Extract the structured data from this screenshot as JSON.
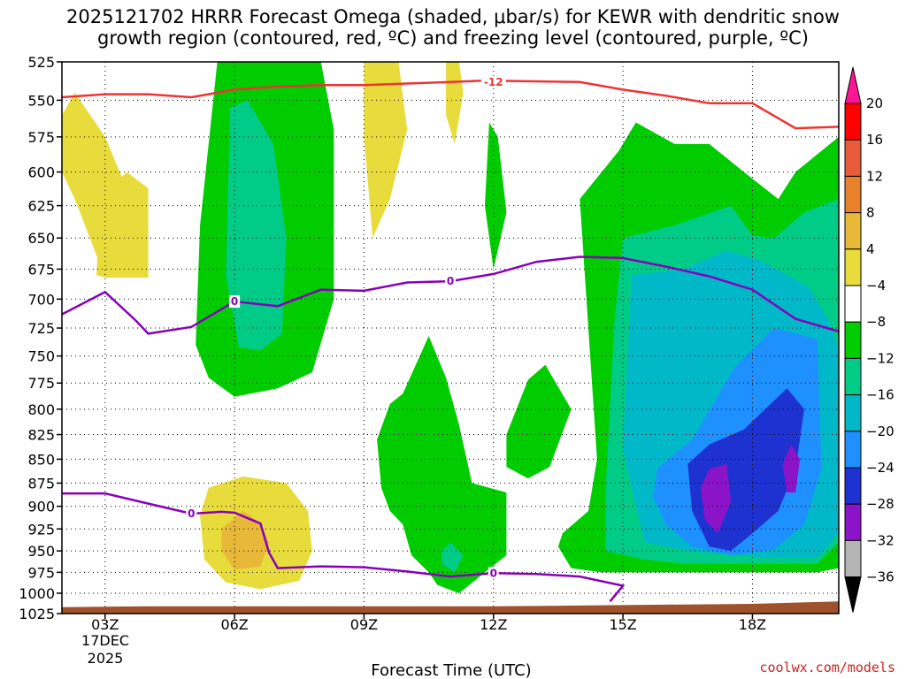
{
  "title_line1": "2025121702 HRRR Forecast Omega (shaded, μbar/s) for KEWR with dendritic snow",
  "title_line2": "growth region (contoured, red, ºC) and freezing level (contoured, purple, ºC)",
  "credit": "coolwx.com/models",
  "colors": {
    "ground": "#a0522d",
    "dgz_contour": "#ee3333",
    "freezing_contour": "#8800bb"
  },
  "chart_data": {
    "type": "heatmap",
    "title": "2025121702 HRRR Forecast Omega (shaded, μbar/s) for KEWR with dendritic snow growth region (contoured, red, ºC) and freezing level (contoured, purple, ºC)",
    "xlabel": "Forecast Time (UTC)",
    "ylabel": "",
    "x_ticks": [
      "03Z",
      "06Z",
      "09Z",
      "12Z",
      "15Z",
      "18Z"
    ],
    "x_tick_hours": [
      3,
      6,
      9,
      12,
      15,
      18
    ],
    "x_date_line1": "17DEC",
    "x_date_line2": "2025",
    "xlim": [
      2,
      20
    ],
    "y_ticks": [
      525,
      550,
      575,
      600,
      625,
      650,
      675,
      700,
      725,
      750,
      775,
      800,
      825,
      850,
      875,
      900,
      925,
      950,
      975,
      1000,
      1025
    ],
    "ylim": [
      525,
      1025
    ],
    "y_scale": "log-pressure",
    "grid": true,
    "colorbar": {
      "levels": [
        "20",
        "16",
        "12",
        "8",
        "4",
        "−4",
        "−8",
        "−12",
        "−16",
        "−20",
        "−24",
        "−28",
        "−32",
        "−36"
      ],
      "colors": [
        "#ff0000",
        "#e85c3c",
        "#e8802c",
        "#e8b838",
        "#e8dc3c",
        "#ffffff",
        "#00cc00",
        "#00cc88",
        "#00b8c8",
        "#1e90ff",
        "#1e32d2",
        "#8c14c8",
        "#b4b4b4"
      ],
      "top_color": "#ff1493",
      "bottom_color": "#000000"
    },
    "series": [
      {
        "name": "-12",
        "kind": "dgz_contour",
        "x": [
          2.0,
          3.0,
          4.0,
          5.0,
          6.0,
          7.0,
          8.0,
          9.0,
          10.0,
          11.0,
          11.8,
          14.0,
          15.0,
          16.0,
          17.0,
          18.0,
          19.0,
          20.0
        ],
        "y": [
          548,
          546,
          546,
          548,
          543,
          541,
          540,
          540,
          539,
          538,
          537,
          538,
          543,
          547,
          552,
          552,
          569,
          568
        ]
      },
      {
        "name": "0",
        "kind": "freezing_contour",
        "x": [
          2.0,
          3.0,
          3.7,
          4.0,
          5.0,
          6.0,
          7.0,
          8.0,
          9.0,
          10.0,
          11.0,
          12.0,
          13.0,
          14.0,
          15.0,
          16.0,
          17.0,
          18.0,
          19.0,
          20.0
        ],
        "y": [
          713,
          694,
          718,
          730,
          724,
          702,
          706,
          692,
          693,
          686,
          685,
          679,
          669,
          665,
          666,
          673,
          681,
          692,
          717,
          728
        ]
      },
      {
        "name": "0",
        "kind": "freezing_contour",
        "x": [
          2.0,
          3.0,
          4.0,
          5.0,
          5.7,
          6.0,
          6.6,
          6.8,
          7.0,
          8.0,
          9.0,
          10.0,
          11.0,
          12.0,
          13.0,
          14.0,
          15.0,
          14.7
        ],
        "y": [
          886,
          886,
          897,
          908,
          906,
          907,
          919,
          952,
          970,
          968,
          969,
          974,
          980,
          976,
          977,
          980,
          991,
          1010
        ]
      }
    ],
    "regions": [
      {
        "label": "4",
        "color": "#e8dc3c",
        "x": [
          2.0,
          2.3,
          3.0,
          3.5,
          3.5,
          3.0,
          2.3,
          2.0
        ],
        "y": [
          560,
          545,
          575,
          612,
          682,
          682,
          620,
          600
        ]
      },
      {
        "label": "4",
        "color": "#e8dc3c",
        "x": [
          2.8,
          2.9,
          3.5,
          4.0,
          4.0,
          3.0
        ],
        "y": [
          680,
          620,
          600,
          612,
          682,
          682
        ]
      },
      {
        "label": "4",
        "color": "#e8dc3c",
        "x": [
          5.4,
          6.2,
          7.2,
          7.7,
          7.8,
          7.5,
          6.6,
          5.8,
          5.3,
          5.2
        ],
        "y": [
          880,
          868,
          875,
          905,
          950,
          985,
          995,
          987,
          960,
          910
        ]
      },
      {
        "label": "8",
        "color": "#e8b838",
        "x": [
          5.7,
          6.2,
          6.6,
          6.8,
          6.6,
          6.0,
          5.7
        ],
        "y": [
          925,
          905,
          918,
          940,
          968,
          972,
          950
        ]
      },
      {
        "label": "4",
        "color": "#e8dc3c",
        "x": [
          9.0,
          9.4,
          9.8,
          10.0,
          9.6,
          9.2,
          9.0
        ],
        "y": [
          525,
          525,
          525,
          570,
          620,
          650,
          575
        ]
      },
      {
        "label": "4",
        "color": "#e8dc3c",
        "x": [
          10.9,
          11.2,
          11.3,
          11.1,
          10.9
        ],
        "y": [
          525,
          525,
          545,
          580,
          560
        ]
      },
      {
        "label": "-4",
        "color": "#00cc00",
        "x": [
          5.6,
          6.9,
          8.0,
          8.3,
          8.3,
          7.8,
          7.0,
          6.0,
          5.4,
          5.1,
          5.2
        ],
        "y": [
          525,
          525,
          525,
          570,
          700,
          765,
          780,
          788,
          770,
          740,
          640
        ]
      },
      {
        "label": "-8",
        "color": "#00cc88",
        "x": [
          5.9,
          6.3,
          6.9,
          7.2,
          7.1,
          6.6,
          6.1,
          5.8
        ],
        "y": [
          555,
          550,
          580,
          650,
          730,
          745,
          742,
          680
        ]
      },
      {
        "label": "-4",
        "color": "#00cc00",
        "x": [
          11.9,
          12.1,
          12.3,
          12.0,
          11.8
        ],
        "y": [
          565,
          575,
          630,
          675,
          625
        ]
      },
      {
        "label": "-4",
        "color": "#00cc00",
        "x": [
          9.6,
          9.9,
          10.5,
          10.9,
          11.2,
          11.5,
          12.3,
          12.3,
          11.8,
          11.2,
          10.7,
          10.5,
          10.1,
          9.9,
          9.6,
          9.4,
          9.3
        ],
        "y": [
          795,
          785,
          732,
          770,
          815,
          875,
          885,
          955,
          975,
          1000,
          990,
          975,
          955,
          920,
          905,
          880,
          830
        ]
      },
      {
        "label": "-8",
        "color": "#00cc88",
        "x": [
          10.8,
          11.0,
          11.3,
          11.1,
          10.8
        ],
        "y": [
          950,
          940,
          955,
          975,
          965
        ]
      },
      {
        "label": "-4",
        "color": "#00cc00",
        "x": [
          12.3,
          12.8,
          13.2,
          13.8,
          13.3,
          12.8,
          12.3
        ],
        "y": [
          825,
          772,
          758,
          800,
          858,
          870,
          858
        ]
      },
      {
        "label": "-4",
        "color": "#00cc00",
        "x": [
          14.9,
          15.3,
          16.2,
          17.0,
          17.8,
          18.6,
          19.0,
          20.0,
          20.0,
          19.5,
          18.5,
          17.5,
          16.5,
          15.5,
          14.5,
          13.8,
          13.5,
          13.6,
          14.2,
          14.4,
          14.0
        ],
        "y": [
          585,
          565,
          580,
          580,
          600,
          620,
          600,
          575,
          970,
          975,
          975,
          975,
          975,
          975,
          975,
          970,
          945,
          930,
          905,
          850,
          620
        ]
      },
      {
        "label": "-8",
        "color": "#00cc88",
        "x": [
          15.0,
          16.2,
          17.5,
          18.0,
          18.5,
          19.2,
          20.0,
          20.0,
          19.5,
          18.5,
          17.5,
          16.5,
          15.5,
          14.6,
          14.6,
          14.8
        ],
        "y": [
          650,
          640,
          625,
          648,
          650,
          630,
          620,
          940,
          965,
          965,
          965,
          965,
          960,
          950,
          880,
          720
        ]
      },
      {
        "label": "-12",
        "color": "#00b8c8",
        "x": [
          15.2,
          16.4,
          17.4,
          18.2,
          19.3,
          19.8,
          20.0,
          20.0,
          19.5,
          18.5,
          17.5,
          16.5,
          15.5,
          15.0
        ],
        "y": [
          680,
          675,
          660,
          668,
          690,
          720,
          745,
          930,
          958,
          958,
          955,
          950,
          940,
          840
        ]
      },
      {
        "label": "-16",
        "color": "#1e90ff",
        "x": [
          15.8,
          16.6,
          17.6,
          18.5,
          19.5,
          19.6,
          19.2,
          18.5,
          17.5,
          16.6,
          16.0,
          15.7
        ],
        "y": [
          860,
          830,
          760,
          725,
          735,
          860,
          920,
          948,
          955,
          945,
          920,
          890
        ]
      },
      {
        "label": "-20",
        "color": "#1e32d2",
        "x": [
          16.5,
          17.0,
          17.8,
          18.8,
          19.2,
          19.0,
          18.6,
          18.0,
          17.5,
          17.0,
          16.6
        ],
        "y": [
          855,
          835,
          820,
          780,
          800,
          860,
          905,
          930,
          950,
          945,
          905
        ]
      },
      {
        "label": "-24",
        "color": "#8c14c8",
        "x": [
          16.8,
          17.0,
          17.4,
          17.5,
          17.2,
          16.9
        ],
        "y": [
          880,
          860,
          855,
          895,
          930,
          915
        ]
      },
      {
        "label": "-24",
        "color": "#8c14c8",
        "x": [
          18.7,
          18.9,
          19.1,
          19.0,
          18.8
        ],
        "y": [
          855,
          835,
          850,
          885,
          885
        ]
      }
    ],
    "ground": {
      "x": [
        2.0,
        4.0,
        6.0,
        8.0,
        10.0,
        12.0,
        14.0,
        16.0,
        18.0,
        20.0
      ],
      "y": [
        1017,
        1016,
        1016,
        1016,
        1016,
        1016,
        1015,
        1014,
        1013,
        1010
      ]
    },
    "annotations": [
      {
        "text": "-12",
        "kind": "dgz_contour",
        "x": 12.0,
        "y": 538
      },
      {
        "text": "0",
        "kind": "freezing_contour",
        "x": 6.0,
        "y": 702
      },
      {
        "text": "0",
        "kind": "freezing_contour",
        "x": 11.0,
        "y": 685
      },
      {
        "text": "0",
        "kind": "freezing_contour",
        "x": 5.0,
        "y": 908
      },
      {
        "text": "0",
        "kind": "freezing_contour",
        "x": 12.0,
        "y": 976
      }
    ]
  }
}
